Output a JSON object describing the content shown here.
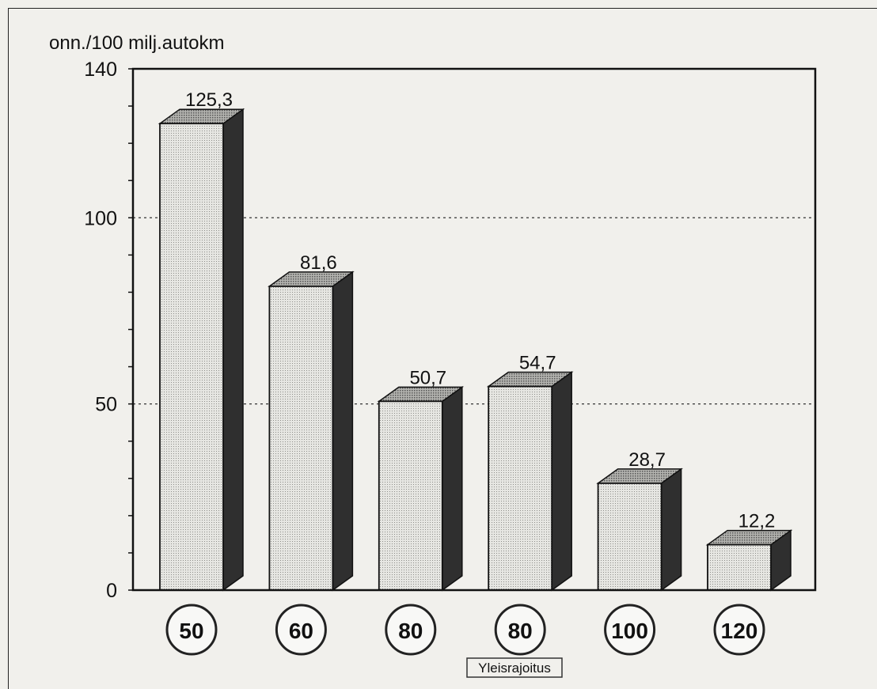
{
  "chart_data": {
    "type": "bar",
    "title": "",
    "ylabel": "onn./100 milj.autokm",
    "xlabel": "Yleisrajoitus",
    "categories": [
      "50",
      "60",
      "80",
      "80",
      "100",
      "120"
    ],
    "values": [
      125.3,
      81.6,
      50.7,
      54.7,
      28.7,
      12.2
    ],
    "value_labels": [
      "125,3",
      "81,6",
      "50,7",
      "54,7",
      "28,7",
      "12,2"
    ],
    "yticks": [
      "0",
      "50",
      "100",
      "140"
    ],
    "ytick_values": [
      0,
      50,
      100,
      140
    ],
    "ylim": [
      0,
      140
    ],
    "grid": "dotted horizontal at 50 and 100",
    "style": "3d bars with circled speed-limit category signs",
    "colors": {
      "bar_front": "#e4e4e0",
      "bar_top": "#a8a8a4",
      "bar_side": "#2f2f2f"
    }
  }
}
